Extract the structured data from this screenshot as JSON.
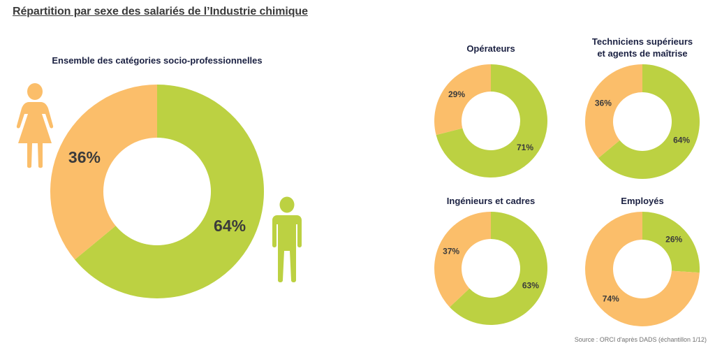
{
  "page_title": "Répartition par sexe des salariés de l’Industrie chimique",
  "colors": {
    "women": "#FBBE6A",
    "men": "#BCD142"
  },
  "icons": {
    "female": "female-person-icon",
    "male": "male-person-icon"
  },
  "source": "Source : ORCI d'après DADS (échantillon 1/12)",
  "chart_data": [
    {
      "type": "pie",
      "title": "Ensemble des catégories socio-professionnelles",
      "categories": [
        "Femmes",
        "Hommes"
      ],
      "values": [
        36,
        64
      ],
      "labels": [
        "36%",
        "64%"
      ]
    },
    {
      "type": "pie",
      "title": "Opérateurs",
      "categories": [
        "Femmes",
        "Hommes"
      ],
      "values": [
        29,
        71
      ],
      "labels": [
        "29%",
        "71%"
      ]
    },
    {
      "type": "pie",
      "title": "Techniciens supérieurs et agents de maîtrise",
      "title_lines": [
        "Techniciens supérieurs",
        "et agents de maîtrise"
      ],
      "categories": [
        "Femmes",
        "Hommes"
      ],
      "values": [
        36,
        64
      ],
      "labels": [
        "36%",
        "64%"
      ]
    },
    {
      "type": "pie",
      "title": "Ingénieurs et cadres",
      "categories": [
        "Femmes",
        "Hommes"
      ],
      "values": [
        37,
        63
      ],
      "labels": [
        "37%",
        "63%"
      ]
    },
    {
      "type": "pie",
      "title": "Employés",
      "categories": [
        "Femmes",
        "Hommes"
      ],
      "values": [
        74,
        26
      ],
      "labels": [
        "74%",
        "26%"
      ]
    }
  ]
}
